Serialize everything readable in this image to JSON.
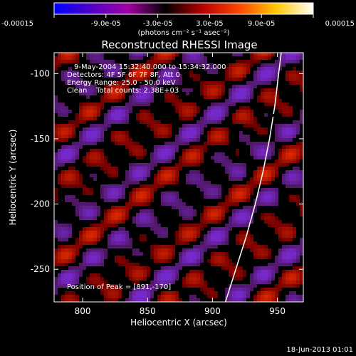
{
  "colorbar": {
    "tick_labels": [
      "-0.00015",
      "-9.0e-05",
      "-3.0e-05",
      "3.0e-05",
      "9.0e-05",
      "0.00015"
    ],
    "tick_values": [
      -0.00015,
      -9e-05,
      -3e-05,
      3e-05,
      9e-05,
      0.00015
    ],
    "range": [
      -0.00015,
      0.00015
    ],
    "unit_label": "(photons cm⁻² s⁻¹ asec⁻²)",
    "colors": [
      "#0000ff",
      "#5000c8",
      "#a000a0",
      "#000000",
      "#b40000",
      "#ff4600",
      "#ffc800",
      "#ffffff"
    ]
  },
  "chart_data": {
    "type": "heatmap",
    "title": "Reconstructed RHESSI Image",
    "xlabel": "Heliocentric X (arcsec)",
    "ylabel": "Heliocentric Y (arcsec)",
    "xlim": [
      778,
      970
    ],
    "ylim": [
      -275,
      -84
    ],
    "x_ticks": [
      800,
      850,
      900,
      950
    ],
    "y_ticks": [
      -100,
      -150,
      -200,
      -250
    ],
    "info_lines": [
      "9-May-2004 15:32:40.000 to 15:34:32.000",
      "Detectors: 4F 5F 6F 7F 8F, Att 0",
      "Energy Range: 25.0 - 50.0 keV",
      "Clean    Total counts: 2.38E+03"
    ],
    "peak_label": "Position of Peak = [891,-170]",
    "peak": [
      891,
      -170
    ],
    "limb_points": [
      [
        910,
        -275
      ],
      [
        918,
        -250
      ],
      [
        926,
        -225
      ],
      [
        933,
        -200
      ],
      [
        939,
        -175
      ],
      [
        944,
        -150
      ],
      [
        948,
        -125
      ],
      [
        951,
        -100
      ],
      [
        953,
        -84
      ]
    ]
  },
  "footer": {
    "timestamp": "18-Jun-2013 01:01"
  }
}
